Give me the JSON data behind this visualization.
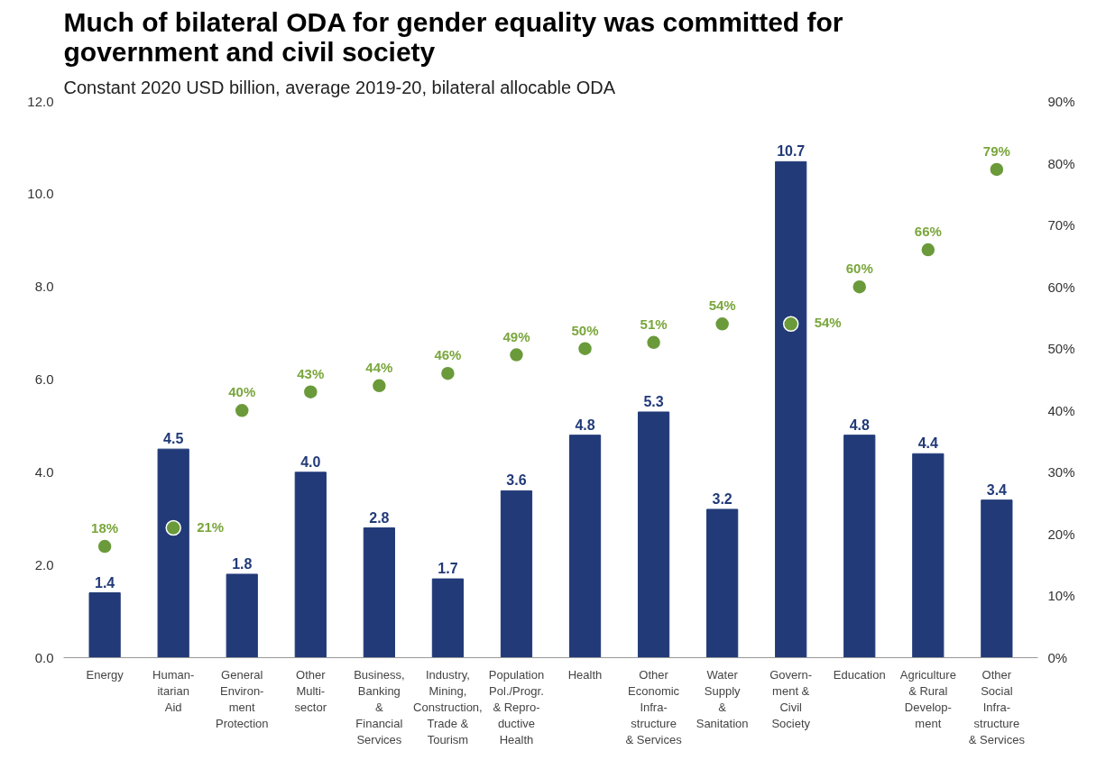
{
  "chart_data": {
    "type": "bar",
    "title": "Much of bilateral ODA for gender equality was committed for government and civil society",
    "subtitle": "Constant 2020 USD billion, average 2019-20, bilateral allocable ODA",
    "categories": [
      "Energy",
      "Human-\nitarian\nAid",
      "General\nEnviron-\nment\nProtection",
      "Other\nMulti-\nsector",
      "Business,\nBanking\n&\nFinancial\nServices",
      "Industry,\nMining,\nConstruction,\nTrade &\nTourism",
      "Population\nPol./Progr.\n& Repro-\nductive\nHealth",
      "Health",
      "Other\nEconomic\nInfra-\nstructure\n& Services",
      "Water\nSupply\n&\nSanitation",
      "Govern-\nment &\nCivil\nSociety",
      "Education",
      "Agriculture\n& Rural\nDevelop-\nment",
      "Other\nSocial\nInfra-\nstructure\n& Services"
    ],
    "series": [
      {
        "color": "#223a78",
        "values": [
          1.4,
          4.5,
          1.8,
          4.0,
          2.8,
          1.7,
          3.6,
          4.8,
          5.3,
          3.2,
          10.7,
          4.8,
          4.4,
          3.4
        ],
        "value_labels": [
          "1.4",
          "4.5",
          "1.8",
          "4.0",
          "2.8",
          "1.7",
          "3.6",
          "4.8",
          "5.3",
          "3.2",
          "10.7",
          "4.8",
          "4.4",
          "3.4"
        ]
      },
      {
        "type": "scatter",
        "axis": "y2",
        "color": "#6a9a3a",
        "values": [
          18,
          21,
          40,
          43,
          44,
          46,
          49,
          50,
          51,
          54,
          54,
          60,
          66,
          79
        ],
        "value_labels": [
          "18%",
          "21%",
          "40%",
          "43%",
          "44%",
          "46%",
          "49%",
          "50%",
          "51%",
          "54%",
          "54%",
          "60%",
          "66%",
          "79%"
        ]
      }
    ],
    "ylim": [
      0,
      12
    ],
    "yticks": [
      {
        "value": 0,
        "label": "0.0"
      },
      {
        "value": 2,
        "label": "2.0"
      },
      {
        "value": 4,
        "label": "4.0"
      },
      {
        "value": 6,
        "label": "6.0"
      },
      {
        "value": 8,
        "label": "8.0"
      },
      {
        "value": 10,
        "label": "10.0"
      },
      {
        "value": 12,
        "label": "12.0"
      }
    ],
    "y2lim": [
      0,
      90
    ],
    "y2ticks": [
      {
        "value": 0,
        "label": "0%"
      },
      {
        "value": 10,
        "label": "10%"
      },
      {
        "value": 20,
        "label": "20%"
      },
      {
        "value": 30,
        "label": "30%"
      },
      {
        "value": 40,
        "label": "40%"
      },
      {
        "value": 50,
        "label": "50%"
      },
      {
        "value": 60,
        "label": "60%"
      },
      {
        "value": 70,
        "label": "70%"
      },
      {
        "value": 80,
        "label": "80%"
      },
      {
        "value": 90,
        "label": "90%"
      }
    ],
    "marker": "circle",
    "grid": false
  }
}
